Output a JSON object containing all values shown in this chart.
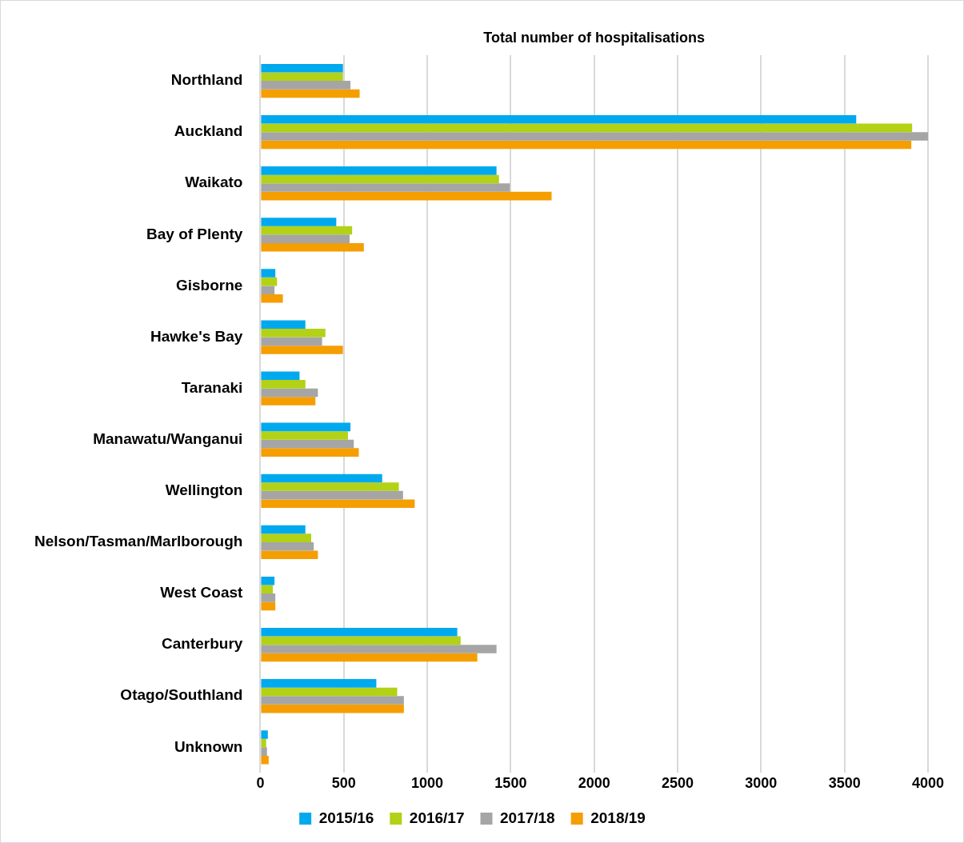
{
  "chart_data": {
    "type": "bar",
    "orientation": "horizontal",
    "title": "Total number of hospitalisations",
    "categories": [
      "Northland",
      "Auckland",
      "Waikato",
      "Bay of Plenty",
      "Gisborne",
      "Hawke's Bay",
      "Taranaki",
      "Manawatu/Wanganui",
      "Wellington",
      "Nelson/Tasman/Marlborough",
      "West Coast",
      "Canterbury",
      "Otago/Southland",
      "Unknown"
    ],
    "series": [
      {
        "name": "2015/16",
        "color": "#00a9ee",
        "values": [
          495,
          3570,
          1415,
          455,
          90,
          270,
          235,
          540,
          730,
          270,
          85,
          1180,
          695,
          45
        ]
      },
      {
        "name": "2016/17",
        "color": "#b3d116",
        "values": [
          495,
          3905,
          1430,
          550,
          100,
          390,
          270,
          525,
          830,
          305,
          75,
          1200,
          820,
          35
        ]
      },
      {
        "name": "2017/18",
        "color": "#a5a5a5",
        "values": [
          540,
          4000,
          1495,
          535,
          85,
          370,
          345,
          560,
          855,
          320,
          90,
          1415,
          860,
          40
        ]
      },
      {
        "name": "2018/19",
        "color": "#f59e00",
        "values": [
          595,
          3900,
          1745,
          620,
          135,
          495,
          330,
          590,
          925,
          345,
          90,
          1300,
          860,
          50
        ]
      }
    ],
    "xlim": [
      0,
      4000
    ],
    "xticks": [
      0,
      500,
      1000,
      1500,
      2000,
      2500,
      3000,
      3500,
      4000
    ],
    "grid": "x",
    "legend": "bottom"
  }
}
